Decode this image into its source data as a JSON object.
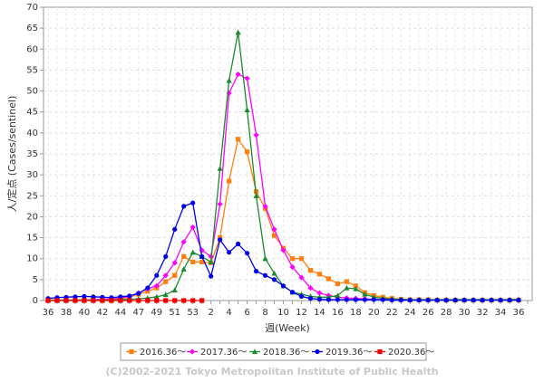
{
  "chart_data": {
    "type": "line",
    "xlabel": "週(Week)",
    "ylabel": "人/定点 (Cases/sentinel)",
    "ylim": [
      0,
      70
    ],
    "yticks": [
      0,
      5,
      10,
      15,
      20,
      25,
      30,
      35,
      40,
      45,
      50,
      55,
      60,
      65,
      70
    ],
    "weeks": [
      36,
      37,
      38,
      39,
      40,
      41,
      42,
      43,
      44,
      45,
      46,
      47,
      48,
      49,
      50,
      51,
      52,
      53,
      1,
      2,
      3,
      4,
      5,
      6,
      7,
      8,
      9,
      10,
      11,
      12,
      13,
      14,
      15,
      16,
      17,
      18,
      19,
      20,
      21,
      22,
      23,
      24,
      25,
      26,
      27,
      28,
      29,
      30,
      31,
      32,
      33,
      34,
      35,
      36
    ],
    "xtick_labels": [
      "36",
      "38",
      "40",
      "42",
      "44",
      "47",
      "49",
      "51",
      "53",
      "2",
      "4",
      "6",
      "8",
      "10",
      "12",
      "14",
      "16",
      "18",
      "20",
      "22",
      "24",
      "26",
      "28",
      "30",
      "32",
      "34",
      "36"
    ],
    "grid": true,
    "legend_position": "bottom",
    "series": [
      {
        "name": "2016.36～",
        "color": "#ff7f0e",
        "marker": "square",
        "values": [
          0.1,
          0.1,
          0.1,
          0.1,
          0.1,
          0.2,
          0.2,
          0.3,
          0.4,
          0.8,
          1.5,
          2.2,
          3.0,
          4.5,
          6.0,
          10.5,
          9.2,
          9.2,
          9.0,
          15.0,
          28.5,
          38.5,
          35.5,
          26.0,
          22.0,
          15.5,
          12.5,
          10.0,
          10.0,
          7.2,
          6.3,
          5.2,
          4.0,
          4.5,
          3.5,
          1.9,
          1.2,
          0.8,
          0.5,
          0.3,
          0.2,
          0.2,
          0.2,
          0.1,
          0.1,
          0.1,
          0.1,
          0.1,
          0.1,
          0.1,
          0.1,
          0.1,
          0.1,
          null
        ]
      },
      {
        "name": "2017.36～",
        "color": "#ff00ff",
        "marker": "diamond",
        "values": [
          0.1,
          0.1,
          0.1,
          0.1,
          0.1,
          0.2,
          0.3,
          0.4,
          0.6,
          1.0,
          1.8,
          2.8,
          3.5,
          6.0,
          9.0,
          14.0,
          17.5,
          12.0,
          10.5,
          23.0,
          49.5,
          54.0,
          53.0,
          39.5,
          22.5,
          17.0,
          12.0,
          8.0,
          5.5,
          3.0,
          1.8,
          1.2,
          0.8,
          0.6,
          0.5,
          0.4,
          0.3,
          0.2,
          0.2,
          0.1,
          0.1,
          0.1,
          0.1,
          0.1,
          0.1,
          null,
          null,
          null,
          null,
          null,
          null,
          null,
          null,
          null
        ]
      },
      {
        "name": "2018.36～",
        "color": "#1a8a2e",
        "marker": "triangle",
        "values": [
          0.1,
          0.1,
          0.1,
          0.1,
          0.1,
          0.1,
          0.1,
          0.1,
          0.2,
          0.3,
          0.4,
          0.6,
          0.9,
          1.4,
          2.5,
          7.5,
          11.5,
          10.5,
          9.2,
          31.5,
          52.5,
          64.0,
          45.5,
          25.0,
          10.0,
          6.5,
          3.5,
          2.0,
          1.5,
          1.0,
          0.8,
          0.8,
          1.2,
          3.0,
          2.8,
          1.5,
          0.8,
          0.5,
          0.4,
          0.3,
          0.2,
          0.2,
          0.2,
          0.2,
          0.2,
          0.2,
          0.2,
          0.2,
          0.2,
          0.2,
          0.2,
          0.2,
          0.3,
          null
        ]
      },
      {
        "name": "2019.36～",
        "color": "#0000ee",
        "marker": "circle",
        "values": [
          0.5,
          0.7,
          0.8,
          0.9,
          1.0,
          0.9,
          0.8,
          0.7,
          0.9,
          1.1,
          1.7,
          3.0,
          6.0,
          10.5,
          17.0,
          22.5,
          23.3,
          10.5,
          5.8,
          14.5,
          11.5,
          13.5,
          11.3,
          7.0,
          6.0,
          5.0,
          3.5,
          2.0,
          1.0,
          0.5,
          0.3,
          0.2,
          0.2,
          0.2,
          0.2,
          0.2,
          0.2,
          0.2,
          0.1,
          0.1,
          0.1,
          0.1,
          0.1,
          0.1,
          0.1,
          0.1,
          0.1,
          0.1,
          0.1,
          0.1,
          0.1,
          0.1,
          0.1,
          null
        ]
      },
      {
        "name": "2020.36～",
        "color": "#ee0000",
        "marker": "square",
        "values": [
          0.0,
          0.0,
          0.0,
          0.0,
          0.0,
          0.0,
          0.0,
          0.0,
          0.0,
          0.0,
          0.0,
          0.0,
          0.0,
          0.0,
          0.0,
          0.0,
          0.0,
          0.0,
          null,
          null,
          null,
          null,
          null,
          null,
          null,
          null,
          null,
          null,
          null,
          null,
          null,
          null,
          null,
          null,
          null,
          null,
          null,
          null,
          null,
          null,
          null,
          null,
          null,
          null,
          null,
          null,
          null,
          null,
          null,
          null,
          null,
          null,
          null,
          null
        ]
      }
    ]
  },
  "copyright": "(C)2002-2021 Tokyo Metropolitan Institute of Public Health"
}
